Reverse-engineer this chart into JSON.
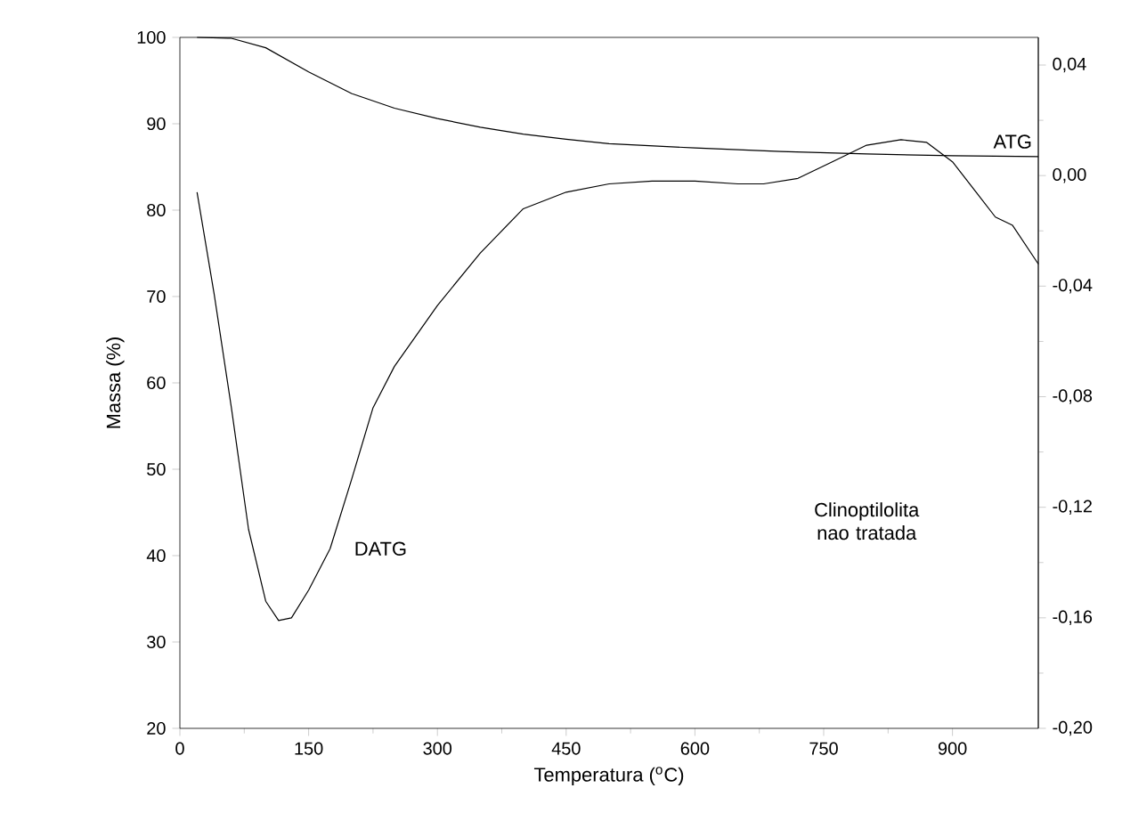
{
  "chart_data": {
    "type": "line",
    "xlabel": "Temperatura ($^{o}$C)",
    "ylabel": "Massa (%)",
    "xlim": [
      0,
      1000
    ],
    "ylim": [
      20,
      100
    ],
    "y2lim": [
      -0.2,
      0.05
    ],
    "xticks": [
      0,
      150,
      300,
      450,
      600,
      750,
      900
    ],
    "yticks": [
      20,
      30,
      40,
      50,
      60,
      70,
      80,
      90,
      100
    ],
    "y2ticks": [
      {
        "value": -0.2,
        "label": "-0,20"
      },
      {
        "value": -0.16,
        "label": "-0,16"
      },
      {
        "value": -0.12,
        "label": "-0,12"
      },
      {
        "value": -0.08,
        "label": "-0,08"
      },
      {
        "value": -0.04,
        "label": "-0,04"
      },
      {
        "value": 0,
        "label": "0,00"
      },
      {
        "value": 0.04,
        "label": "0,04"
      }
    ],
    "line_style": "solid",
    "series": [
      {
        "name": "ATG",
        "color": "#000000",
        "x": [
          20,
          60,
          100,
          150,
          200,
          250,
          300,
          350,
          400,
          450,
          500,
          600,
          700,
          800,
          900,
          1000
        ],
        "values": [
          100,
          99.9,
          98.8,
          96,
          93.5,
          91.8,
          90.6,
          89.6,
          88.8,
          88.2,
          87.7,
          87.2,
          86.8,
          86.5,
          86.3,
          86.2
        ]
      },
      {
        "name": "DATG",
        "color": "#000000",
        "axis": "y2",
        "x": [
          20,
          40,
          60,
          80,
          100,
          115,
          130,
          150,
          175,
          200,
          225,
          250,
          300,
          350,
          400,
          450,
          500,
          550,
          600,
          650,
          680,
          720,
          760,
          800,
          840,
          870,
          900,
          930,
          950,
          970,
          1000
        ],
        "values": [
          -0.006,
          -0.043,
          -0.084,
          -0.128,
          -0.154,
          -0.161,
          -0.16,
          -0.15,
          -0.135,
          -0.11,
          -0.084,
          -0.069,
          -0.047,
          -0.028,
          -0.012,
          -0.006,
          -0.003,
          -0.002,
          -0.002,
          -0.003,
          -0.003,
          -0.001,
          0.005,
          0.011,
          0.013,
          0.012,
          0.005,
          -0.007,
          -0.015,
          -0.018,
          -0.032
        ]
      }
    ],
    "annotations": [
      "Clinoptilolita nao tratada"
    ]
  }
}
